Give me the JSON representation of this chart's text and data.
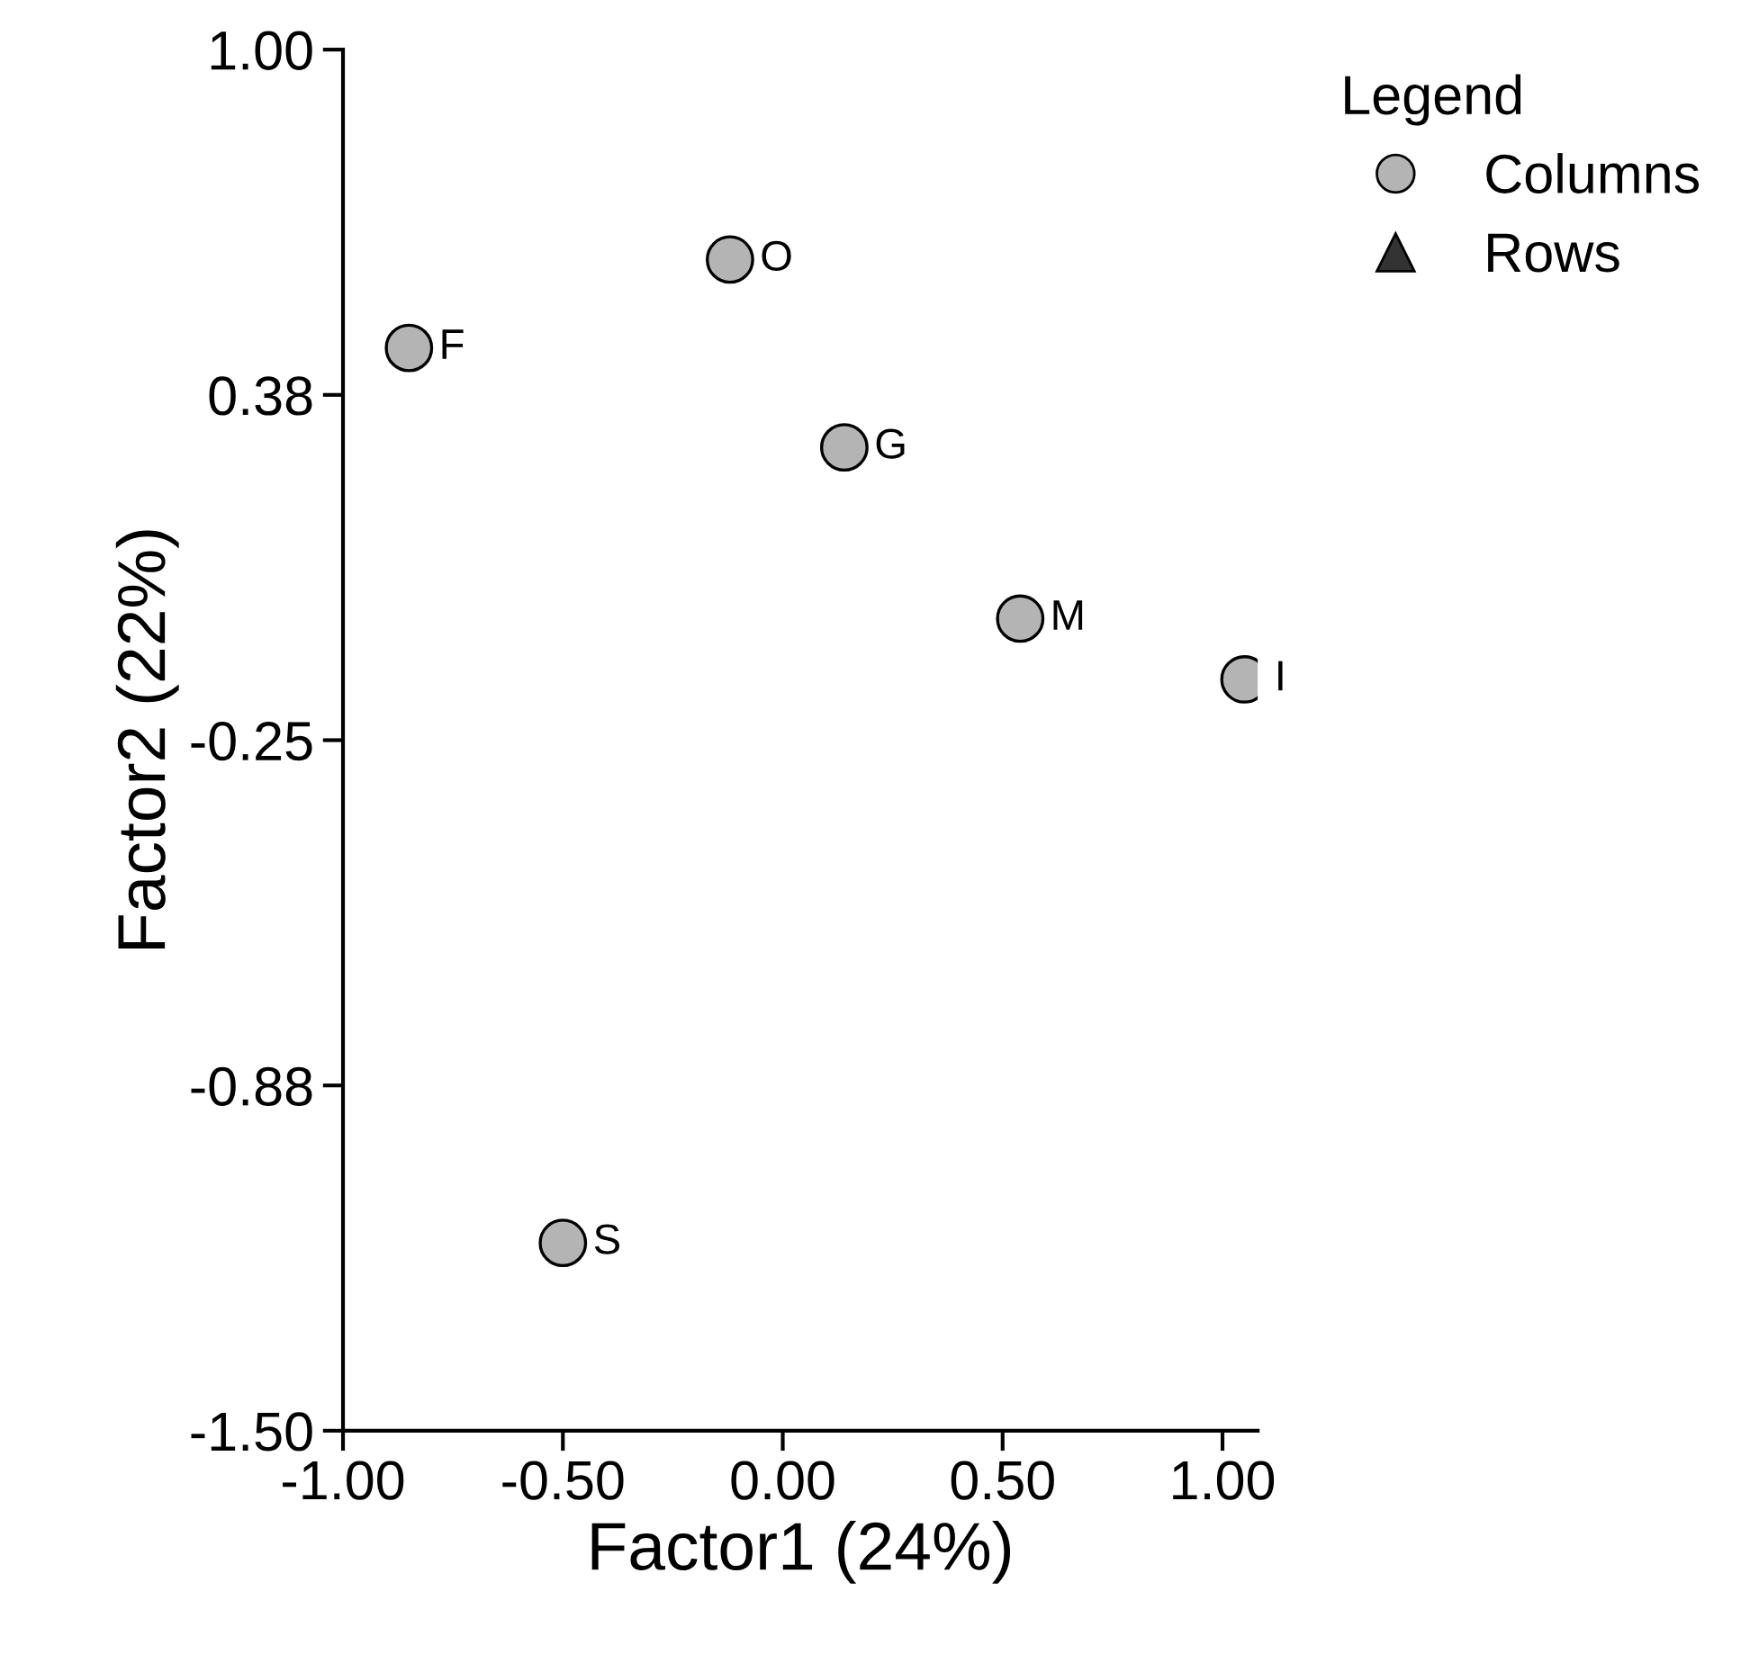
{
  "chart_data": {
    "type": "scatter",
    "xlabel": "Factor1 (24%)",
    "ylabel": "Factor2 (22%)",
    "legend_title": "Legend",
    "legend": "top right",
    "xlim": [
      -1.0,
      1.08
    ],
    "xticks": [
      {
        "value": -1.0,
        "label": "-1.00"
      },
      {
        "value": -0.5,
        "label": "-0.50"
      },
      {
        "value": 0.0,
        "label": "0.00"
      },
      {
        "value": 0.5,
        "label": "0.50"
      },
      {
        "value": 1.0,
        "label": "1.00"
      }
    ],
    "ylim": [
      -1.5,
      1.0
    ],
    "yticks": [
      {
        "value": -1.5,
        "label": "-1.50"
      },
      {
        "value": -0.875,
        "label": "-0.88"
      },
      {
        "value": -0.25,
        "label": "-0.25"
      },
      {
        "value": 0.375,
        "label": "0.38"
      },
      {
        "value": 1.0,
        "label": "1.00"
      }
    ],
    "grid": false,
    "series": [
      {
        "name": "Columns",
        "color": "#b4b4b4",
        "marker": "circle",
        "x": [
          -0.85,
          -0.12,
          0.14,
          0.54,
          1.05,
          -0.5
        ],
        "values": [
          0.46,
          0.62,
          0.28,
          -0.03,
          -0.14,
          -1.16
        ]
      },
      {
        "name": "Rows",
        "color": "#333333",
        "marker": "triangle"
      }
    ],
    "annotations": [
      {
        "text": "F",
        "x": -0.85,
        "y": 0.46
      },
      {
        "text": "O",
        "x": -0.12,
        "y": 0.62
      },
      {
        "text": "G",
        "x": 0.14,
        "y": 0.28
      },
      {
        "text": "M",
        "x": 0.54,
        "y": -0.03
      },
      {
        "text": "I",
        "x": 1.05,
        "y": -0.14
      },
      {
        "text": "S",
        "x": -0.5,
        "y": -1.16
      }
    ]
  }
}
